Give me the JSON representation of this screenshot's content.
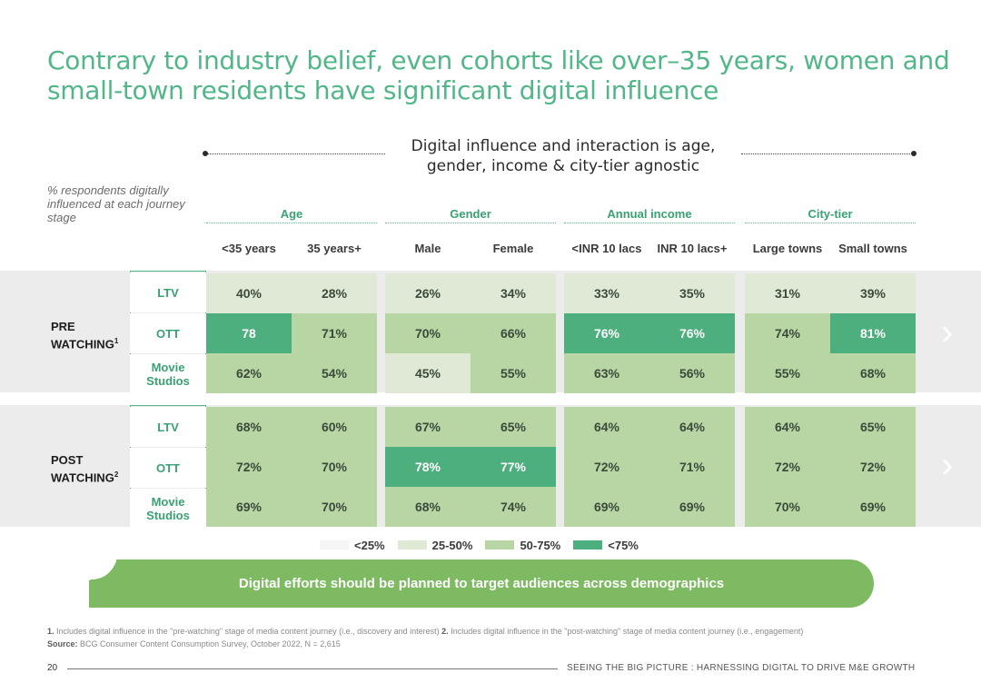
{
  "title": "Contrary to industry belief, even cohorts like over–35 years, women and small-town residents have significant digital influence",
  "subtitle": "Digital influence and interaction is age, gender, income & city-tier agnostic",
  "y_label": "% respondents digitally influenced at each journey stage",
  "groups": [
    "Age",
    "Gender",
    "Annual income",
    "City-tier"
  ],
  "columns": [
    "<35 years",
    "35 years+",
    "Male",
    "Female",
    "<INR 10 lacs",
    "INR 10 lacs+",
    "Large towns",
    "Small towns"
  ],
  "stages": [
    {
      "label": "PRE",
      "label2": "WATCHING",
      "sup": "1",
      "rows": [
        {
          "label": "LTV",
          "values": [
            "40%",
            "28%",
            "26%",
            "34%",
            "33%",
            "35%",
            "31%",
            "39%"
          ]
        },
        {
          "label": "OTT",
          "values": [
            "78",
            "71%",
            "70%",
            "66%",
            "76%",
            "76%",
            "74%",
            "81%"
          ]
        },
        {
          "label": "Movie Studios",
          "values": [
            "62%",
            "54%",
            "45%",
            "55%",
            "63%",
            "56%",
            "55%",
            "68%"
          ]
        }
      ]
    },
    {
      "label": "POST",
      "label2": "WATCHING",
      "sup": "2",
      "rows": [
        {
          "label": "LTV",
          "values": [
            "68%",
            "60%",
            "67%",
            "65%",
            "64%",
            "64%",
            "64%",
            "65%"
          ]
        },
        {
          "label": "OTT",
          "values": [
            "72%",
            "70%",
            "78%",
            "77%",
            "72%",
            "71%",
            "72%",
            "72%"
          ]
        },
        {
          "label": "Movie Studios",
          "values": [
            "69%",
            "70%",
            "68%",
            "74%",
            "69%",
            "69%",
            "70%",
            "69%"
          ]
        }
      ]
    }
  ],
  "legend": [
    "<25%",
    "25-50%",
    "50-75%",
    "<75%"
  ],
  "banner": "Digital efforts should be planned to target audiences across demographics",
  "footnote_1_label": "1.",
  "footnote_1": "Includes digital influence in the \"pre-watching\" stage of media content journey (i.e., discovery and interest)",
  "footnote_2_label": "2.",
  "footnote_2": "Includes digital influence in the \"post-watching\" stage of media content journey (i.e., engagement)",
  "source_label": "Source:",
  "source": "BCG Consumer Content Consumption Survey, October 2022, N = 2,615",
  "page_number": "20",
  "footer_title": "SEEING THE BIG PICTURE : HARNESSING DIGITAL TO DRIVE M&E GROWTH",
  "colors": {
    "accent": "#52b788",
    "top": "#4caf7d",
    "high": "#b7d6a3",
    "mid": "#dfe9d6",
    "low": "#f6f6f6"
  }
}
